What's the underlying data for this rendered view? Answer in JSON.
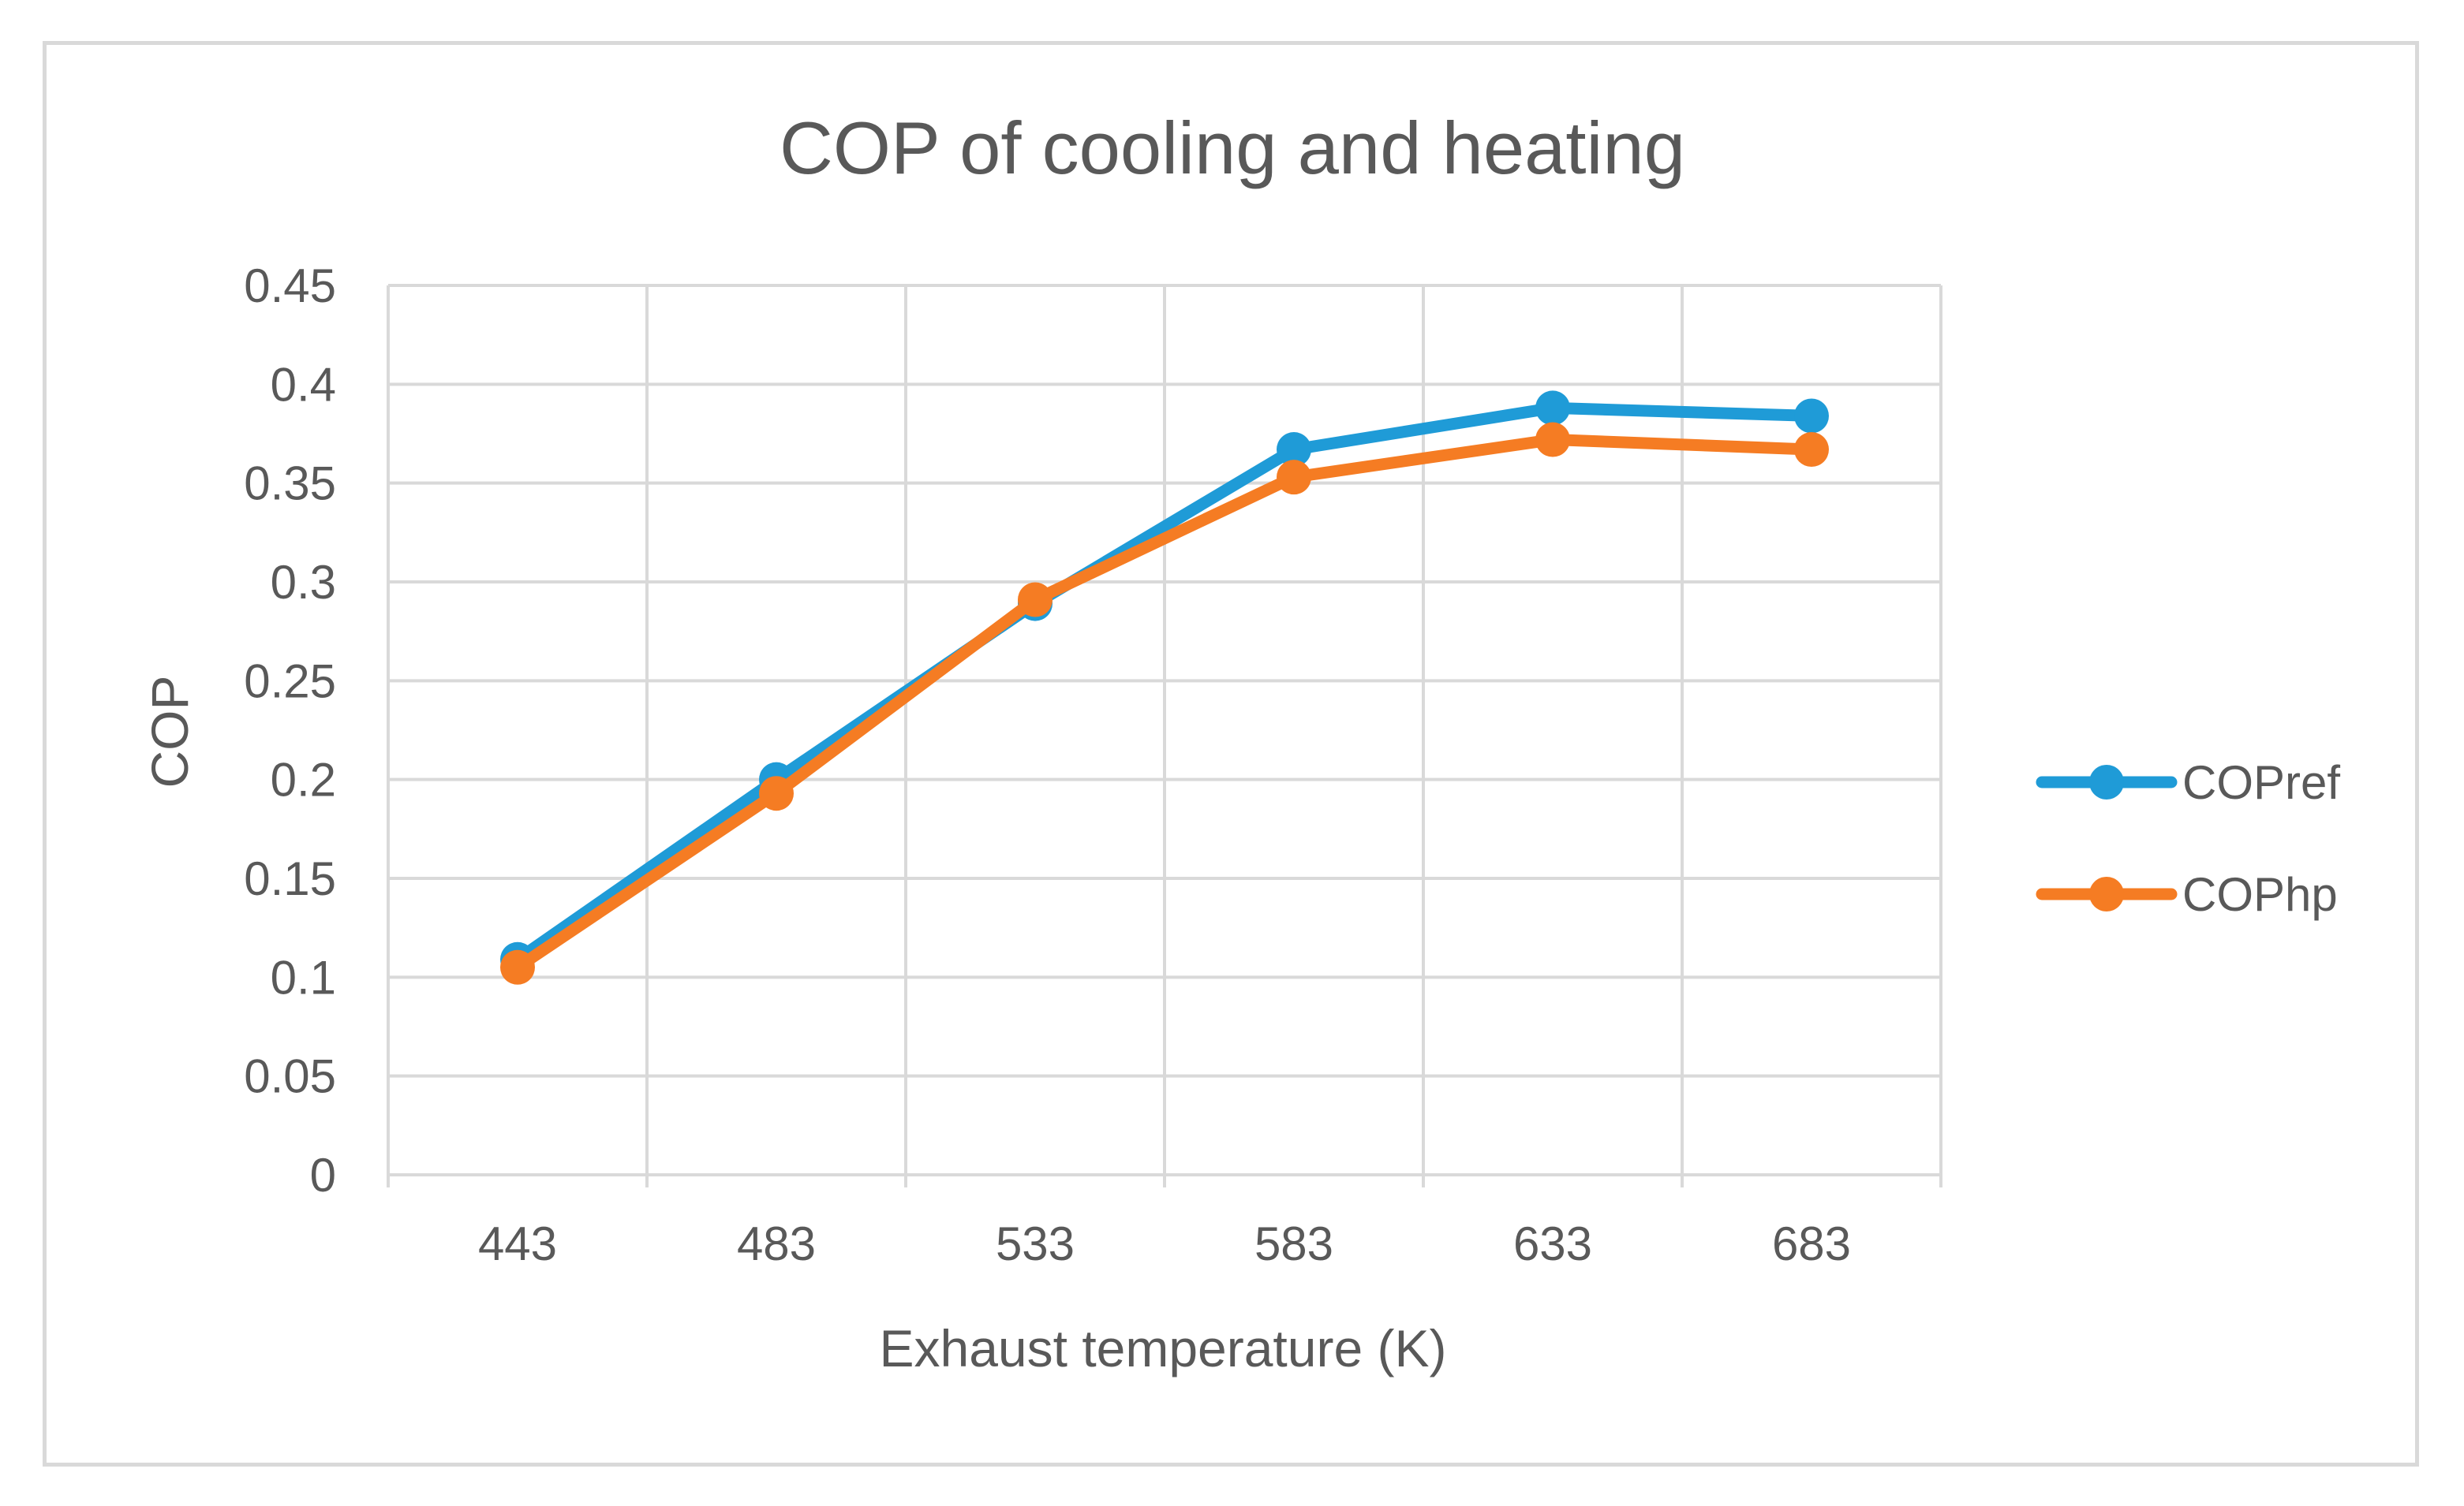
{
  "chart_data": {
    "type": "line",
    "title": "COP of cooling and heating",
    "xlabel": "Exhaust temperature (K)",
    "ylabel": "COP",
    "categories": [
      "443",
      "483",
      "533",
      "583",
      "633",
      "683"
    ],
    "ylim": [
      0,
      0.45
    ],
    "yticks": [
      "0",
      "0.05",
      "0.1",
      "0.15",
      "0.2",
      "0.25",
      "0.3",
      "0.35",
      "0.4",
      "0.45"
    ],
    "grid": true,
    "legend_position": "right",
    "series": [
      {
        "name": "COPref",
        "color": "#1f9bd7",
        "values": [
          0.109,
          0.2,
          0.289,
          0.367,
          0.388,
          0.384
        ]
      },
      {
        "name": "COPhp",
        "color": "#f57c23",
        "values": [
          0.105,
          0.193,
          0.291,
          0.353,
          0.372,
          0.367
        ]
      }
    ]
  }
}
